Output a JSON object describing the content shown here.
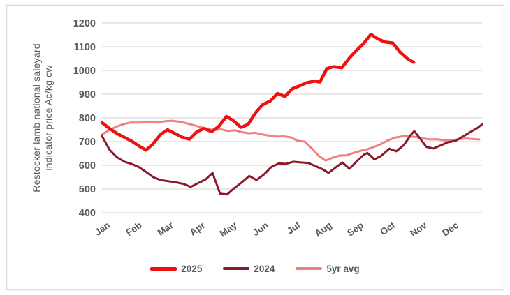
{
  "chart": {
    "background": "#ffffff",
    "border_color": "#d9d9d9",
    "gridline_color": "#d9d9d9",
    "text_color": "#595959"
  },
  "y_axis": {
    "title_line1": "Restocker lamb national saleyard",
    "title_line2": "indicator price Ac/kg cw",
    "min": 400,
    "max": 1200
  },
  "chart_data": {
    "type": "line",
    "title": "",
    "ylabel": "Restocker lamb national saleyard indicator price Ac/kg cw",
    "xlabel": "",
    "ylim": [
      400,
      1200
    ],
    "y_ticks": [
      400,
      500,
      600,
      700,
      800,
      900,
      1000,
      1100,
      1200
    ],
    "categories": [
      "Jan",
      "Feb",
      "Mar",
      "Apr",
      "May",
      "Jun",
      "Jul",
      "Aug",
      "Sep",
      "Oct",
      "Nov",
      "Dec"
    ],
    "x_units": "month_index_0_to_12",
    "grid": "horizontal",
    "legend_position": "bottom",
    "series": [
      {
        "name": "2025",
        "color": "#ee1111",
        "width": 4.5,
        "points": [
          [
            0.0,
            780
          ],
          [
            0.22,
            757
          ],
          [
            0.46,
            735
          ],
          [
            0.68,
            720
          ],
          [
            0.93,
            702
          ],
          [
            1.15,
            683
          ],
          [
            1.39,
            664
          ],
          [
            1.61,
            690
          ],
          [
            1.85,
            730
          ],
          [
            2.07,
            750
          ],
          [
            2.29,
            735
          ],
          [
            2.54,
            718
          ],
          [
            2.76,
            710
          ],
          [
            3.0,
            742
          ],
          [
            3.22,
            755
          ],
          [
            3.46,
            742
          ],
          [
            3.68,
            763
          ],
          [
            3.93,
            806
          ],
          [
            4.15,
            788
          ],
          [
            4.39,
            760
          ],
          [
            4.61,
            772
          ],
          [
            4.85,
            822
          ],
          [
            5.07,
            855
          ],
          [
            5.32,
            872
          ],
          [
            5.54,
            903
          ],
          [
            5.78,
            890
          ],
          [
            6.0,
            922
          ],
          [
            6.24,
            935
          ],
          [
            6.46,
            948
          ],
          [
            6.71,
            955
          ],
          [
            6.88,
            951
          ],
          [
            7.1,
            1008
          ],
          [
            7.32,
            1016
          ],
          [
            7.57,
            1011
          ],
          [
            7.81,
            1052
          ],
          [
            8.03,
            1084
          ],
          [
            8.25,
            1112
          ],
          [
            8.49,
            1152
          ],
          [
            8.71,
            1133
          ],
          [
            8.93,
            1120
          ],
          [
            9.18,
            1116
          ],
          [
            9.42,
            1076
          ],
          [
            9.64,
            1050
          ],
          [
            9.84,
            1034
          ]
        ]
      },
      {
        "name": "2024",
        "color": "#8a1a2b",
        "width": 3,
        "points": [
          [
            0.0,
            723
          ],
          [
            0.24,
            665
          ],
          [
            0.46,
            635
          ],
          [
            0.71,
            615
          ],
          [
            0.93,
            606
          ],
          [
            1.17,
            592
          ],
          [
            1.39,
            572
          ],
          [
            1.63,
            549
          ],
          [
            1.85,
            538
          ],
          [
            2.1,
            533
          ],
          [
            2.34,
            528
          ],
          [
            2.56,
            522
          ],
          [
            2.8,
            509
          ],
          [
            3.02,
            524
          ],
          [
            3.27,
            540
          ],
          [
            3.49,
            568
          ],
          [
            3.73,
            480
          ],
          [
            3.95,
            477
          ],
          [
            4.19,
            505
          ],
          [
            4.41,
            528
          ],
          [
            4.65,
            555
          ],
          [
            4.88,
            538
          ],
          [
            5.12,
            562
          ],
          [
            5.34,
            592
          ],
          [
            5.58,
            608
          ],
          [
            5.8,
            606
          ],
          [
            6.04,
            615
          ],
          [
            6.27,
            612
          ],
          [
            6.51,
            610
          ],
          [
            6.73,
            597
          ],
          [
            6.97,
            583
          ],
          [
            7.15,
            568
          ],
          [
            7.37,
            590
          ],
          [
            7.59,
            612
          ],
          [
            7.81,
            585
          ],
          [
            8.05,
            618
          ],
          [
            8.27,
            645
          ],
          [
            8.38,
            652
          ],
          [
            8.6,
            625
          ],
          [
            8.82,
            640
          ],
          [
            9.07,
            670
          ],
          [
            9.29,
            659
          ],
          [
            9.53,
            685
          ],
          [
            9.75,
            728
          ],
          [
            9.86,
            744
          ],
          [
            9.99,
            722
          ],
          [
            10.24,
            678
          ],
          [
            10.46,
            671
          ],
          [
            10.7,
            684
          ],
          [
            10.92,
            697
          ],
          [
            11.16,
            703
          ],
          [
            11.38,
            720
          ],
          [
            11.63,
            740
          ],
          [
            11.85,
            757
          ],
          [
            12.0,
            772
          ]
        ]
      },
      {
        "name": "5yr avg",
        "color": "#f08080",
        "width": 3,
        "points": [
          [
            0.0,
            730
          ],
          [
            0.22,
            748
          ],
          [
            0.44,
            762
          ],
          [
            0.66,
            773
          ],
          [
            0.88,
            780
          ],
          [
            1.1,
            780
          ],
          [
            1.32,
            781
          ],
          [
            1.54,
            783
          ],
          [
            1.76,
            780
          ],
          [
            1.99,
            786
          ],
          [
            2.21,
            788
          ],
          [
            2.43,
            784
          ],
          [
            2.65,
            778
          ],
          [
            2.87,
            770
          ],
          [
            3.09,
            762
          ],
          [
            3.31,
            755
          ],
          [
            3.53,
            748
          ],
          [
            3.75,
            752
          ],
          [
            3.97,
            745
          ],
          [
            4.19,
            748
          ],
          [
            4.41,
            740
          ],
          [
            4.63,
            735
          ],
          [
            4.85,
            737
          ],
          [
            5.07,
            730
          ],
          [
            5.29,
            725
          ],
          [
            5.51,
            721
          ],
          [
            5.74,
            722
          ],
          [
            5.96,
            718
          ],
          [
            6.18,
            703
          ],
          [
            6.4,
            700
          ],
          [
            6.62,
            672
          ],
          [
            6.84,
            640
          ],
          [
            7.06,
            620
          ],
          [
            7.28,
            632
          ],
          [
            7.5,
            641
          ],
          [
            7.72,
            642
          ],
          [
            7.94,
            652
          ],
          [
            8.16,
            661
          ],
          [
            8.38,
            668
          ],
          [
            8.6,
            678
          ],
          [
            8.82,
            690
          ],
          [
            9.04,
            706
          ],
          [
            9.26,
            717
          ],
          [
            9.49,
            722
          ],
          [
            9.71,
            722
          ],
          [
            9.93,
            719
          ],
          [
            10.15,
            713
          ],
          [
            10.37,
            709
          ],
          [
            10.59,
            710
          ],
          [
            10.81,
            705
          ],
          [
            11.03,
            705
          ],
          [
            11.25,
            710
          ],
          [
            11.47,
            713
          ],
          [
            11.69,
            711
          ],
          [
            11.91,
            709
          ]
        ]
      }
    ]
  }
}
